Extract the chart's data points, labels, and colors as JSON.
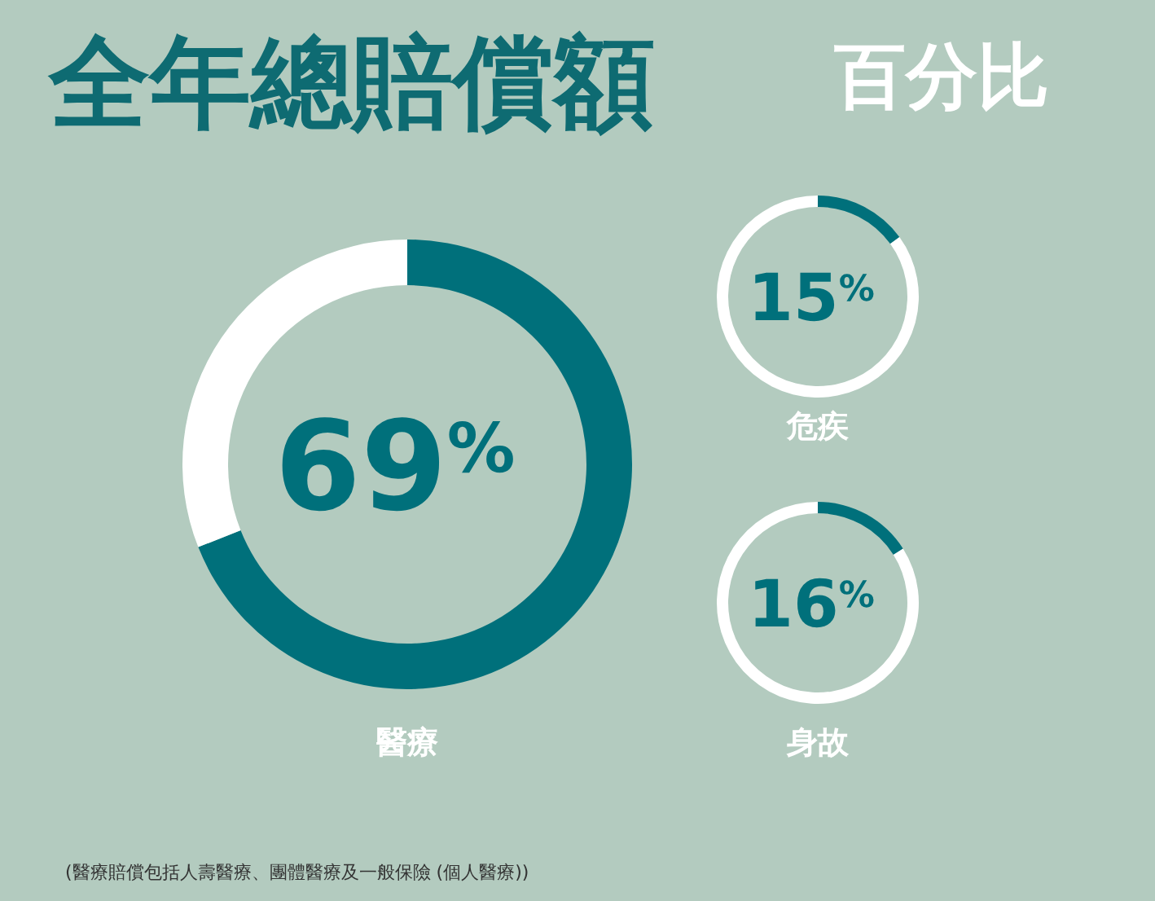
{
  "chart_data": [
    {
      "type": "donut",
      "title": "全年總賠償額",
      "subtitle": "百分比",
      "categories": [
        "醫療",
        null
      ],
      "values": [
        69,
        31
      ],
      "colors": [
        "#00707b",
        "#ffffff"
      ],
      "value_labels": [
        "69$^{%}$",
        null
      ],
      "annotations": [
        "(醫療賠償包括人壽醫療、團體醫療及一般保險 (個人醫療))"
      ]
    },
    {
      "type": "donut",
      "title": "危疾",
      "categories": [
        null,
        null
      ],
      "values": [
        15,
        85
      ],
      "colors": [
        "#00707b",
        "#ffffff"
      ],
      "annotations": [
        "15$^{%}$"
      ]
    },
    {
      "type": "donut",
      "title": "身故",
      "categories": [
        null,
        null
      ],
      "values": [
        16,
        84
      ],
      "colors": [
        "#00707b",
        "#ffffff"
      ],
      "annotations": [
        "16$^{%}$"
      ]
    }
  ]
}
